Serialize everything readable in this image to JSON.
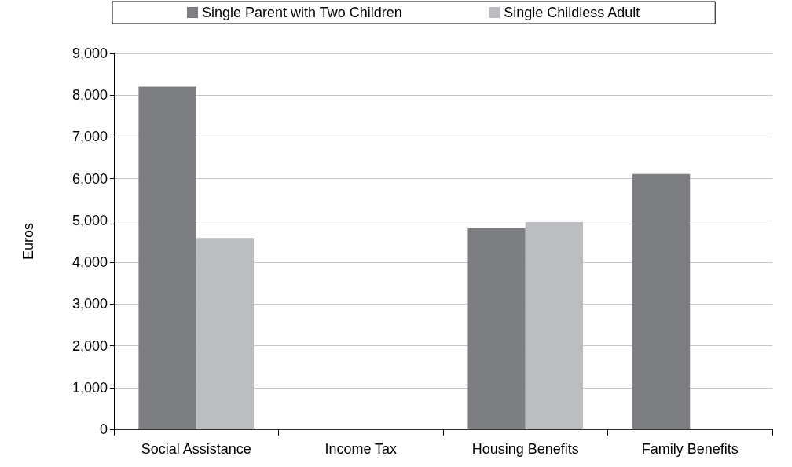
{
  "chart_data": {
    "type": "bar",
    "ylabel": "Euros",
    "categories": [
      "Social Assistance",
      "Income Tax",
      "Housing Benefits",
      "Family Benefits"
    ],
    "series": [
      {
        "name": "Single Parent with Two Children",
        "color": "#7d7e82",
        "values": [
          8200,
          0,
          4810,
          6110
        ]
      },
      {
        "name": "Single Childless Adult",
        "color": "#bcbdc1",
        "values": [
          4580,
          0,
          4960,
          0
        ]
      }
    ],
    "ylim": [
      0,
      9000
    ],
    "yticks": [
      0,
      {
        "value": 1000,
        "label": "1,000"
      },
      {
        "value": 2000,
        "label": "2,000"
      },
      {
        "value": 3000,
        "label": "3,000"
      },
      {
        "value": 4000,
        "label": "4,000"
      },
      {
        "value": 5000,
        "label": "5,000"
      },
      {
        "value": 6000,
        "label": "6,000"
      },
      {
        "value": 7000,
        "label": "7,000"
      },
      {
        "value": 8000,
        "label": "8,000"
      },
      {
        "value": 9000,
        "label": "9,000"
      }
    ],
    "grid": "y",
    "legend": "top"
  }
}
